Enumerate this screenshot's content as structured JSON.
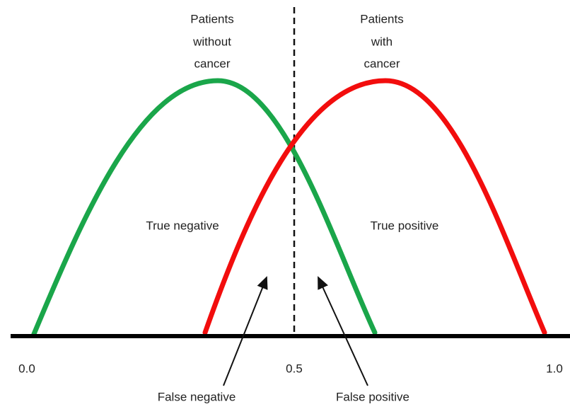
{
  "groups": {
    "left": [
      "Patients",
      "without",
      "cancer"
    ],
    "right": [
      "Patients",
      "with",
      "cancer"
    ]
  },
  "regions": {
    "true_negative": "True negative",
    "true_positive": "True positive"
  },
  "callouts": {
    "false_negative": "False negative",
    "false_positive": "False positive"
  },
  "axis": {
    "ticks": [
      "0.0",
      "0.5",
      "1.0"
    ]
  }
}
